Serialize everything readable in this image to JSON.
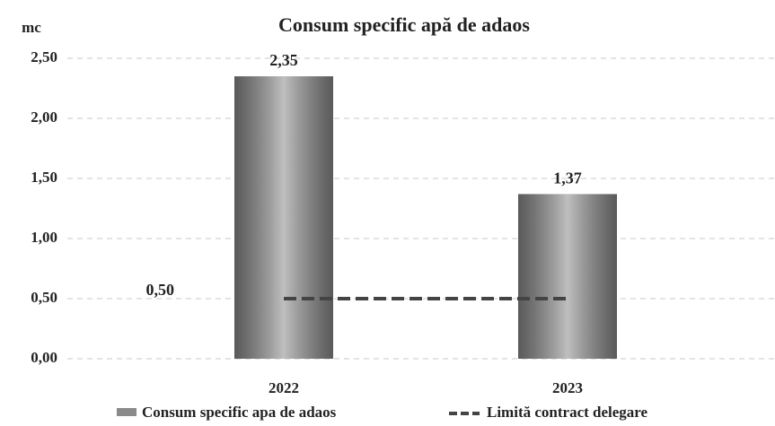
{
  "chart_data": {
    "type": "bar",
    "title": "Consum specific apă de adaos",
    "ylabel": "mc",
    "categories": [
      "2022",
      "2023"
    ],
    "series": [
      {
        "name": "Consum specific apa de adaos",
        "type": "bar",
        "color": "#8a8a8a",
        "values": [
          2.35,
          1.37
        ],
        "value_labels": [
          "2,35",
          "1,37"
        ]
      },
      {
        "name": "Limită contract delegare",
        "type": "line",
        "color": "#444444",
        "values": [
          0.5,
          0.5
        ],
        "value_labels": [
          "0,50",
          null
        ]
      }
    ],
    "ylim": [
      0,
      2.5
    ],
    "yticks": [
      {
        "value": 0,
        "label": "0,00"
      },
      {
        "value": 0.5,
        "label": "0,50"
      },
      {
        "value": 1,
        "label": "1,00"
      },
      {
        "value": 1.5,
        "label": "1,50"
      },
      {
        "value": 2,
        "label": "2,00"
      },
      {
        "value": 2.5,
        "label": "2,50"
      }
    ],
    "grid": true,
    "legend": "bottom"
  }
}
